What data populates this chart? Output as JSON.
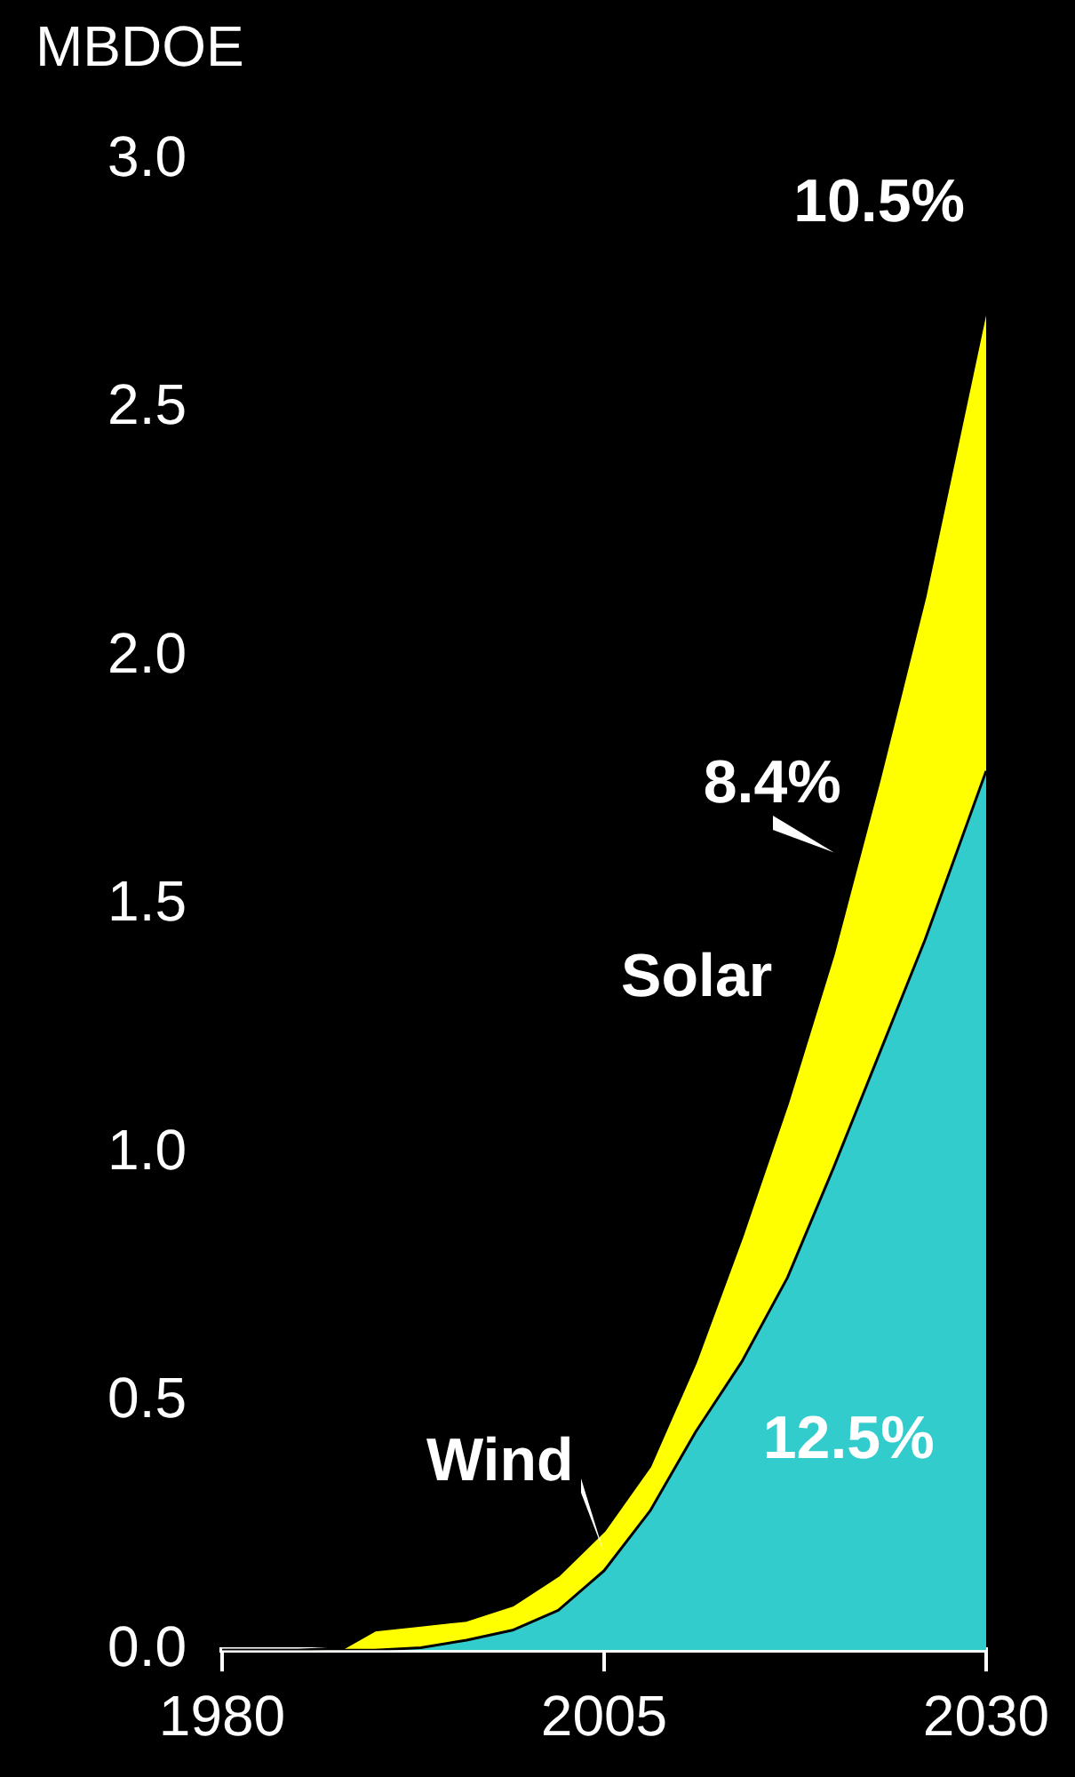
{
  "chart_data": {
    "type": "area",
    "ylabel": "MBDOE",
    "stacked": true,
    "x": [
      1980,
      1985,
      1988,
      1990,
      1993,
      1996,
      1999,
      2002,
      2005,
      2008,
      2011,
      2014,
      2017,
      2020,
      2023,
      2026,
      2030
    ],
    "series": [
      {
        "name": "Wind",
        "color": "#33cccc",
        "values": [
          0,
          0,
          0,
          0,
          0.005,
          0.02,
          0.04,
          0.08,
          0.16,
          0.28,
          0.44,
          0.58,
          0.75,
          0.97,
          1.2,
          1.43,
          1.77
        ]
      },
      {
        "name": "Solar",
        "color": "#ffff00",
        "values": [
          0,
          0,
          0.005,
          0.04,
          0.045,
          0.04,
          0.05,
          0.07,
          0.08,
          0.09,
          0.14,
          0.25,
          0.35,
          0.43,
          0.55,
          0.69,
          0.93
        ]
      }
    ],
    "xlim": [
      1980,
      2030
    ],
    "xticks": [
      1980,
      2005,
      2030
    ],
    "ylim": [
      0,
      3
    ],
    "yticks": [
      {
        "value": 0,
        "label": "0.0"
      },
      {
        "value": 0.5,
        "label": "0.5"
      },
      {
        "value": 1,
        "label": "1.0"
      },
      {
        "value": 1.5,
        "label": "1.5"
      },
      {
        "value": 2,
        "label": "2.0"
      },
      {
        "value": 2.5,
        "label": "2.5"
      },
      {
        "value": 3,
        "label": "3.0"
      }
    ],
    "annotations": [
      "10.5%",
      "8.4%",
      "12.5%"
    ],
    "grid": false,
    "legend": false
  }
}
